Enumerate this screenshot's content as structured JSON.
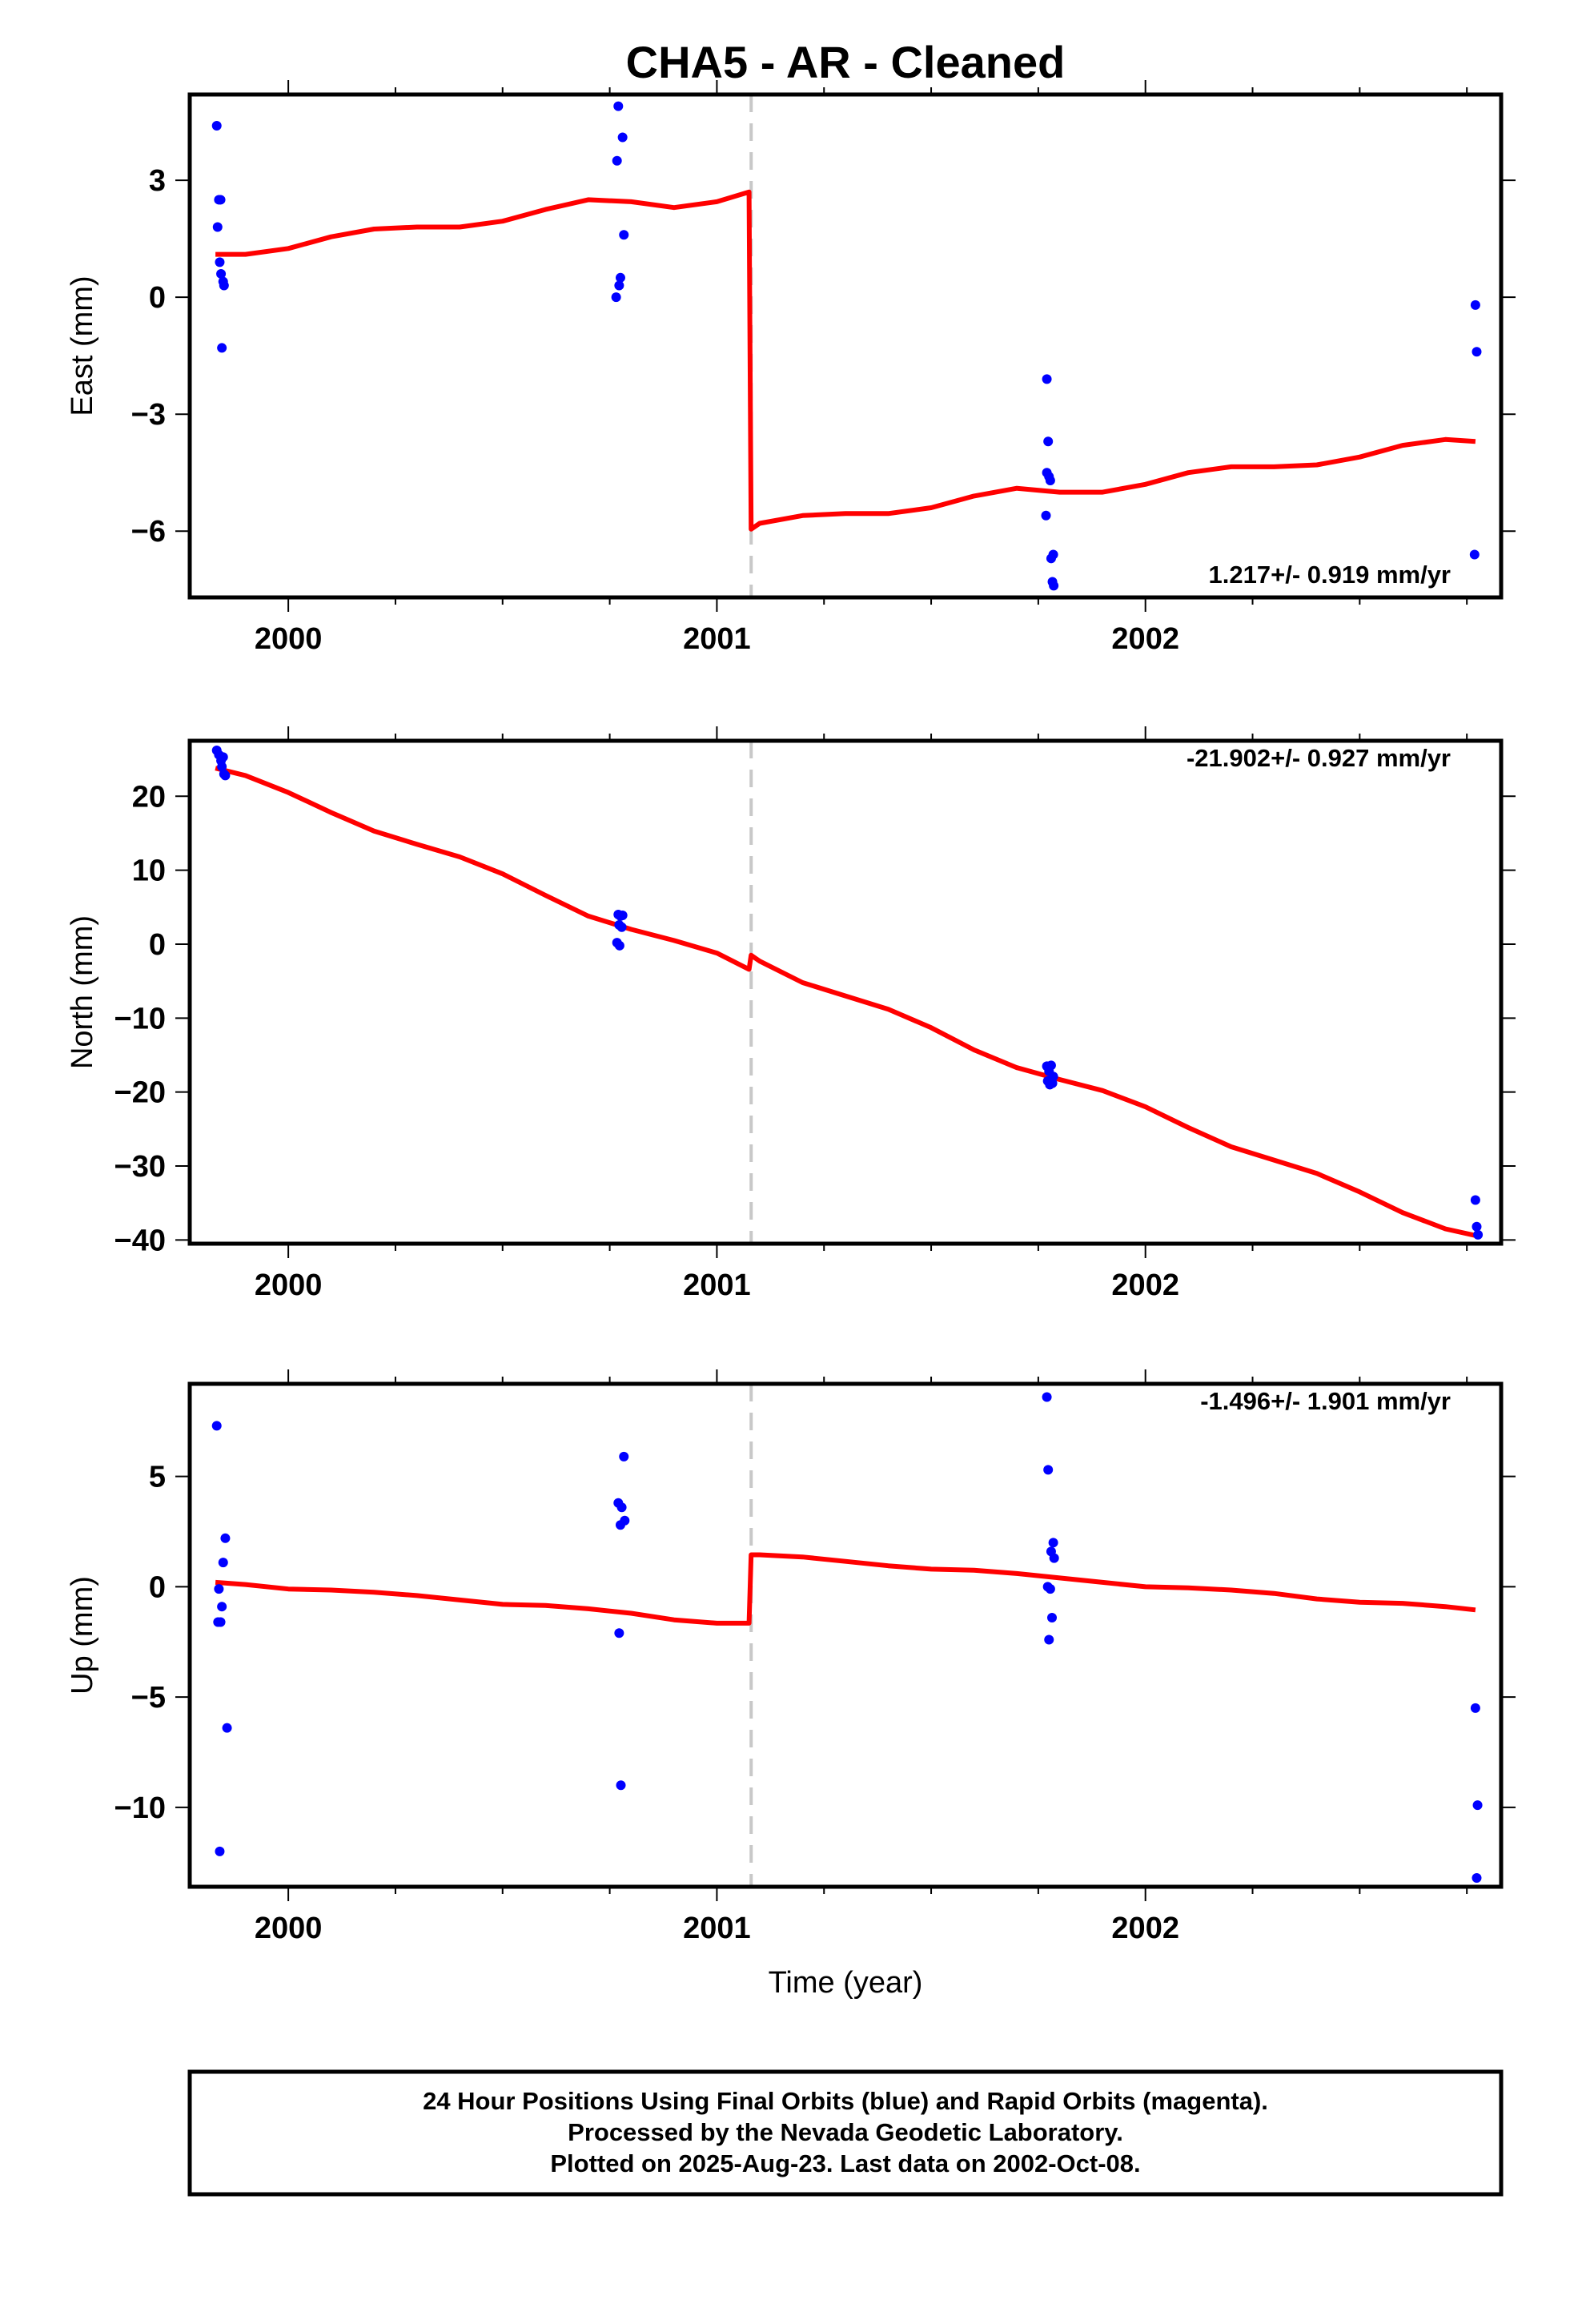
{
  "title": "CHA5  - AR - Cleaned",
  "xlabel": "Time (year)",
  "footer": {
    "line1": "24 Hour Positions Using Final Orbits (blue) and Rapid Orbits (magenta).",
    "line2": "Processed by the Nevada Geodetic Laboratory.",
    "line3": "Plotted on 2025-Aug-23. Last data on 2002-Oct-08."
  },
  "colors": {
    "points": "#0000ff",
    "model": "#ff0000",
    "break": "#c8c8c8",
    "frame": "#000000"
  },
  "chart_data": [
    {
      "type": "scatter",
      "ylabel": "East (mm)",
      "rate_text": "1.217+/- 0.919 mm/yr",
      "xlim": [
        1999.77,
        2002.83
      ],
      "ylim": [
        -7.7,
        5.2
      ],
      "xticks": [
        2000,
        2001,
        2002
      ],
      "xtick_labels": [
        "2000",
        "2001",
        "2002"
      ],
      "yticks": [
        3,
        0,
        -3,
        -6
      ],
      "ytick_labels": [
        "3",
        "0",
        "−3",
        "−6"
      ],
      "break_x": 2001.08,
      "points": [
        [
          1999.833,
          4.4
        ],
        [
          1999.838,
          2.5
        ],
        [
          1999.842,
          2.5
        ],
        [
          1999.835,
          1.8
        ],
        [
          1999.84,
          0.9
        ],
        [
          1999.843,
          0.6
        ],
        [
          1999.848,
          0.4
        ],
        [
          1999.85,
          0.3
        ],
        [
          1999.845,
          -1.3
        ],
        [
          2000.77,
          4.9
        ],
        [
          2000.78,
          4.1
        ],
        [
          2000.767,
          3.5
        ],
        [
          2000.783,
          1.6
        ],
        [
          2000.775,
          0.5
        ],
        [
          2000.772,
          0.3
        ],
        [
          2000.765,
          0.0
        ],
        [
          2001.77,
          -2.1
        ],
        [
          2001.773,
          -3.7
        ],
        [
          2001.77,
          -4.5
        ],
        [
          2001.775,
          -4.6
        ],
        [
          2001.778,
          -4.7
        ],
        [
          2001.768,
          -5.6
        ],
        [
          2001.785,
          -6.6
        ],
        [
          2001.78,
          -6.7
        ],
        [
          2001.783,
          -7.3
        ],
        [
          2001.786,
          -7.4
        ],
        [
          2002.77,
          -0.2
        ],
        [
          2002.773,
          -1.4
        ],
        [
          2002.768,
          -6.6
        ]
      ],
      "model": [
        [
          1999.83,
          1.1
        ],
        [
          1999.9,
          1.1
        ],
        [
          2000.0,
          1.25
        ],
        [
          2000.1,
          1.55
        ],
        [
          2000.2,
          1.75
        ],
        [
          2000.3,
          1.8
        ],
        [
          2000.4,
          1.8
        ],
        [
          2000.5,
          1.95
        ],
        [
          2000.6,
          2.25
        ],
        [
          2000.7,
          2.5
        ],
        [
          2000.8,
          2.45
        ],
        [
          2000.9,
          2.3
        ],
        [
          2001.0,
          2.45
        ],
        [
          2001.075,
          2.7
        ],
        [
          2001.08,
          -5.95
        ],
        [
          2001.1,
          -5.8
        ],
        [
          2001.2,
          -5.6
        ],
        [
          2001.3,
          -5.55
        ],
        [
          2001.4,
          -5.55
        ],
        [
          2001.5,
          -5.4
        ],
        [
          2001.6,
          -5.1
        ],
        [
          2001.7,
          -4.9
        ],
        [
          2001.8,
          -5.0
        ],
        [
          2001.9,
          -5.0
        ],
        [
          2002.0,
          -4.8
        ],
        [
          2002.1,
          -4.5
        ],
        [
          2002.2,
          -4.35
        ],
        [
          2002.3,
          -4.35
        ],
        [
          2002.4,
          -4.3
        ],
        [
          2002.5,
          -4.1
        ],
        [
          2002.6,
          -3.8
        ],
        [
          2002.7,
          -3.65
        ],
        [
          2002.77,
          -3.7
        ]
      ]
    },
    {
      "type": "scatter",
      "ylabel": "North (mm)",
      "rate_text": "-21.902+/- 0.927 mm/yr",
      "xlim": [
        1999.77,
        2002.83
      ],
      "ylim": [
        -40.5,
        27.5
      ],
      "xticks": [
        2000,
        2001,
        2002
      ],
      "xtick_labels": [
        "2000",
        "2001",
        "2002"
      ],
      "yticks": [
        20,
        10,
        0,
        -10,
        -20,
        -30,
        -40
      ],
      "ytick_labels": [
        "20",
        "10",
        "0",
        "−10",
        "−20",
        "−30",
        "−40"
      ],
      "break_x": 2001.08,
      "points": [
        [
          1999.833,
          26.2
        ],
        [
          1999.838,
          25.6
        ],
        [
          1999.843,
          24.8
        ],
        [
          1999.848,
          25.3
        ],
        [
          1999.845,
          24.0
        ],
        [
          1999.85,
          23.0
        ],
        [
          1999.853,
          22.8
        ],
        [
          2000.77,
          4.0
        ],
        [
          2000.775,
          3.8
        ],
        [
          2000.78,
          3.9
        ],
        [
          2000.772,
          2.6
        ],
        [
          2000.778,
          2.3
        ],
        [
          2000.767,
          0.2
        ],
        [
          2000.773,
          -0.2
        ],
        [
          2001.77,
          -16.5
        ],
        [
          2001.775,
          -17.2
        ],
        [
          2001.78,
          -16.4
        ],
        [
          2001.785,
          -17.9
        ],
        [
          2001.772,
          -18.5
        ],
        [
          2001.777,
          -19.0
        ],
        [
          2001.783,
          -18.8
        ],
        [
          2002.77,
          -34.6
        ],
        [
          2002.773,
          -38.2
        ],
        [
          2002.776,
          -39.3
        ]
      ],
      "model": [
        [
          1999.83,
          23.8
        ],
        [
          1999.9,
          22.8
        ],
        [
          2000.0,
          20.5
        ],
        [
          2000.1,
          17.8
        ],
        [
          2000.2,
          15.3
        ],
        [
          2000.3,
          13.5
        ],
        [
          2000.4,
          11.8
        ],
        [
          2000.5,
          9.5
        ],
        [
          2000.6,
          6.6
        ],
        [
          2000.7,
          3.8
        ],
        [
          2000.8,
          2.0
        ],
        [
          2000.9,
          0.5
        ],
        [
          2001.0,
          -1.2
        ],
        [
          2001.075,
          -3.4
        ],
        [
          2001.08,
          -1.5
        ],
        [
          2001.1,
          -2.3
        ],
        [
          2001.2,
          -5.2
        ],
        [
          2001.3,
          -7.0
        ],
        [
          2001.4,
          -8.8
        ],
        [
          2001.5,
          -11.3
        ],
        [
          2001.6,
          -14.3
        ],
        [
          2001.7,
          -16.7
        ],
        [
          2001.8,
          -18.3
        ],
        [
          2001.9,
          -19.8
        ],
        [
          2002.0,
          -22.0
        ],
        [
          2002.1,
          -24.8
        ],
        [
          2002.2,
          -27.4
        ],
        [
          2002.3,
          -29.2
        ],
        [
          2002.4,
          -31.0
        ],
        [
          2002.5,
          -33.5
        ],
        [
          2002.6,
          -36.3
        ],
        [
          2002.7,
          -38.5
        ],
        [
          2002.77,
          -39.4
        ]
      ]
    },
    {
      "type": "scatter",
      "ylabel": "Up (mm)",
      "rate_text": "-1.496+/- 1.901 mm/yr",
      "xlim": [
        1999.77,
        2002.83
      ],
      "ylim": [
        -13.6,
        9.2
      ],
      "xticks": [
        2000,
        2001,
        2002
      ],
      "xtick_labels": [
        "2000",
        "2001",
        "2002"
      ],
      "yticks": [
        5,
        0,
        -5,
        -10
      ],
      "ytick_labels": [
        "5",
        "0",
        "−5",
        "−10"
      ],
      "break_x": 2001.08,
      "points": [
        [
          1999.833,
          7.3
        ],
        [
          1999.853,
          2.2
        ],
        [
          1999.848,
          1.1
        ],
        [
          1999.838,
          -0.1
        ],
        [
          1999.845,
          -0.9
        ],
        [
          1999.836,
          -1.6
        ],
        [
          1999.842,
          -1.6
        ],
        [
          1999.857,
          -6.4
        ],
        [
          1999.84,
          -12.0
        ],
        [
          2000.783,
          5.9
        ],
        [
          2000.77,
          3.8
        ],
        [
          2000.778,
          3.6
        ],
        [
          2000.785,
          3.0
        ],
        [
          2000.775,
          2.8
        ],
        [
          2000.772,
          -2.1
        ],
        [
          2000.776,
          -9.0
        ],
        [
          2001.77,
          8.6
        ],
        [
          2001.773,
          5.3
        ],
        [
          2001.785,
          2.0
        ],
        [
          2001.78,
          1.6
        ],
        [
          2001.787,
          1.3
        ],
        [
          2001.772,
          0.0
        ],
        [
          2001.778,
          -0.1
        ],
        [
          2001.782,
          -1.4
        ],
        [
          2001.775,
          -2.4
        ],
        [
          2002.77,
          -5.5
        ],
        [
          2002.775,
          -9.9
        ],
        [
          2002.773,
          -13.2
        ]
      ],
      "model": [
        [
          1999.83,
          0.2
        ],
        [
          1999.9,
          0.1
        ],
        [
          2000.0,
          -0.1
        ],
        [
          2000.1,
          -0.15
        ],
        [
          2000.2,
          -0.25
        ],
        [
          2000.3,
          -0.4
        ],
        [
          2000.4,
          -0.6
        ],
        [
          2000.5,
          -0.8
        ],
        [
          2000.6,
          -0.85
        ],
        [
          2000.7,
          -1.0
        ],
        [
          2000.8,
          -1.2
        ],
        [
          2000.9,
          -1.5
        ],
        [
          2001.0,
          -1.65
        ],
        [
          2001.075,
          -1.65
        ],
        [
          2001.08,
          1.45
        ],
        [
          2001.1,
          1.45
        ],
        [
          2001.2,
          1.35
        ],
        [
          2001.3,
          1.15
        ],
        [
          2001.4,
          0.95
        ],
        [
          2001.5,
          0.8
        ],
        [
          2001.6,
          0.75
        ],
        [
          2001.7,
          0.6
        ],
        [
          2001.8,
          0.4
        ],
        [
          2001.9,
          0.2
        ],
        [
          2002.0,
          0.0
        ],
        [
          2002.1,
          -0.05
        ],
        [
          2002.2,
          -0.15
        ],
        [
          2002.3,
          -0.3
        ],
        [
          2002.4,
          -0.55
        ],
        [
          2002.5,
          -0.7
        ],
        [
          2002.6,
          -0.75
        ],
        [
          2002.7,
          -0.9
        ],
        [
          2002.77,
          -1.05
        ]
      ]
    }
  ]
}
